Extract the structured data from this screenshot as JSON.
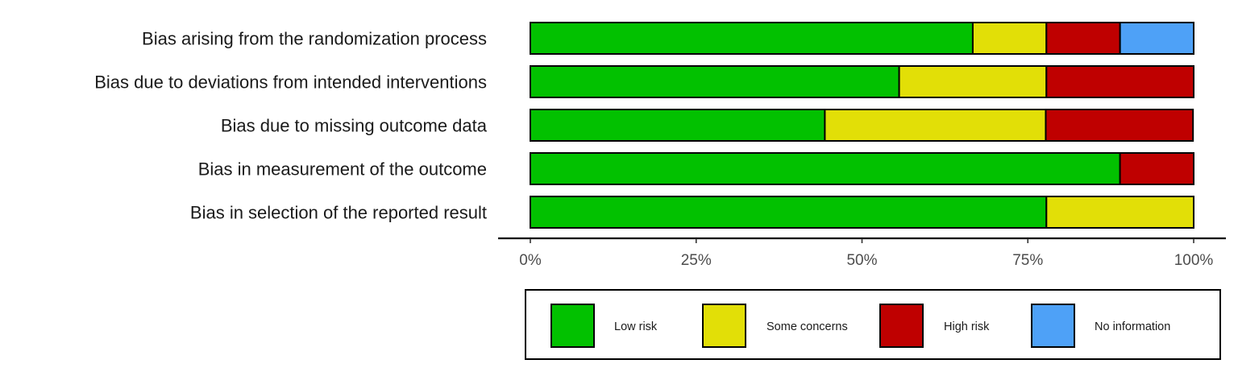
{
  "chart_data": {
    "type": "bar",
    "orientation": "horizontal",
    "stacked": true,
    "categories": [
      "Bias arising from the randomization process",
      "Bias due to deviations from intended interventions",
      "Bias due to missing outcome data",
      "Bias in measurement of the outcome",
      "Bias in selection of the reported result"
    ],
    "series": [
      {
        "name": "Low risk",
        "color": "#02C100",
        "values": [
          66.7,
          55.6,
          44.4,
          88.9,
          77.8
        ]
      },
      {
        "name": "Some concerns",
        "color": "#E2DF07",
        "values": [
          11.1,
          22.2,
          33.3,
          0,
          22.2
        ]
      },
      {
        "name": "High risk",
        "color": "#BF0000",
        "values": [
          11.1,
          22.2,
          22.2,
          11.1,
          0
        ]
      },
      {
        "name": "No information",
        "color": "#4EA1F7",
        "values": [
          11.1,
          0,
          0,
          0,
          0
        ]
      }
    ],
    "xlim": [
      0,
      100
    ],
    "x_ticks": [
      "0%",
      "25%",
      "50%",
      "75%",
      "100%"
    ],
    "title": "",
    "xlabel": "",
    "ylabel": "",
    "grid": false,
    "legend_position": "bottom"
  }
}
